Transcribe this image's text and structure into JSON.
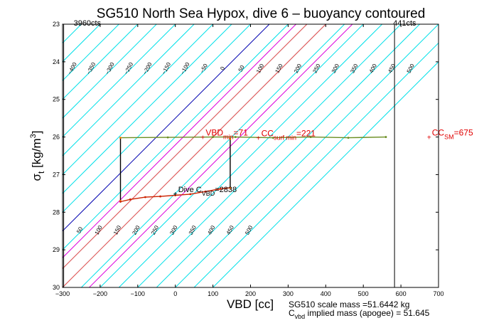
{
  "chart_data": {
    "type": "line",
    "title": "SG510 North Sea Hypox, dive 6 – buoyancy contoured",
    "xlabel": "VBD [cc]",
    "ylabel_main": "σ",
    "ylabel_sub": "t",
    "ylabel_unit": " [kg/m",
    "ylabel_exp": "3",
    "ylabel_close": "]",
    "xlim": [
      -300,
      700
    ],
    "ylim": [
      23,
      30
    ],
    "y_reversed": true,
    "xticks": [
      -300,
      -200,
      -100,
      0,
      100,
      200,
      300,
      400,
      500,
      600,
      700
    ],
    "xtick_labels": [
      "−300",
      "−200",
      "−100",
      "0",
      "100",
      "200",
      "300",
      "400",
      "500",
      "600",
      "700"
    ],
    "yticks": [
      23,
      24,
      25,
      26,
      27,
      28,
      29,
      30
    ],
    "ytick_labels": [
      "23",
      "24",
      "25",
      "26",
      "27",
      "28",
      "29",
      "30"
    ],
    "limit_lines": [
      {
        "x": -297,
        "label": "3960cts"
      },
      {
        "x": 583,
        "label": "441cts"
      }
    ],
    "contours": {
      "cyan_levels": [
        -500,
        -450,
        -400,
        -350,
        -300,
        -250,
        -200,
        -150,
        -100,
        -50,
        50,
        100,
        150,
        200,
        250,
        300,
        350,
        400,
        450,
        500,
        550
      ],
      "blue_level": 0,
      "magenta_levels": [
        71,
        221
      ],
      "red_levels": [
        100,
        150
      ],
      "level_spacing_per_sigma": 50,
      "ref_x_at_sigma_25": 50,
      "top_labels": [
        {
          "level": -450,
          "text": "−450"
        },
        {
          "level": -400,
          "text": "−400"
        },
        {
          "level": -350,
          "text": "−350"
        },
        {
          "level": -300,
          "text": "−300"
        },
        {
          "level": -250,
          "text": "−250"
        },
        {
          "level": -200,
          "text": "−200"
        },
        {
          "level": -150,
          "text": "−150"
        },
        {
          "level": -100,
          "text": "−100"
        },
        {
          "level": -50,
          "text": "−50"
        },
        {
          "level": 0,
          "text": "0"
        },
        {
          "level": 50,
          "text": "50"
        },
        {
          "level": 100,
          "text": "100"
        },
        {
          "level": 150,
          "text": "150"
        },
        {
          "level": 200,
          "text": "200"
        },
        {
          "level": 250,
          "text": "250"
        },
        {
          "level": 300,
          "text": "300"
        },
        {
          "level": 350,
          "text": "350"
        },
        {
          "level": 400,
          "text": "400"
        },
        {
          "level": 450,
          "text": "450"
        },
        {
          "level": 500,
          "text": "500"
        }
      ],
      "bottom_labels": [
        {
          "level": -200,
          "text": "−200"
        },
        {
          "level": -150,
          "text": "−150"
        },
        {
          "level": -100,
          "text": "−100"
        },
        {
          "level": -50,
          "text": "−50"
        },
        {
          "level": 0,
          "text": "0"
        },
        {
          "level": 50,
          "text": "50"
        },
        {
          "level": 100,
          "text": "100"
        },
        {
          "level": 150,
          "text": "150"
        },
        {
          "level": 200,
          "text": "200"
        },
        {
          "level": 250,
          "text": "250"
        },
        {
          "level": 300,
          "text": "300"
        },
        {
          "level": 350,
          "text": "350"
        },
        {
          "level": 400,
          "text": "400"
        },
        {
          "level": 450,
          "text": "450"
        },
        {
          "level": 500,
          "text": "500"
        }
      ]
    },
    "series": [
      {
        "color": "#6b8e23",
        "points": [
          [
            -146,
            26.02
          ],
          [
            -20,
            26.01
          ],
          [
            100,
            26.0
          ],
          [
            160,
            26.0
          ],
          [
            260,
            26.02
          ],
          [
            360,
            26.0
          ],
          [
            460,
            26.02
          ],
          [
            560,
            26.0
          ]
        ]
      },
      {
        "color": "#000000",
        "points": [
          [
            -146,
            26.02
          ],
          [
            -146,
            27.7
          ]
        ]
      },
      {
        "color": "#cc2200",
        "points": [
          [
            -146,
            27.72
          ],
          [
            -120,
            27.66
          ],
          [
            -80,
            27.6
          ],
          [
            -40,
            27.58
          ],
          [
            0,
            27.55
          ],
          [
            40,
            27.52
          ],
          [
            80,
            27.45
          ],
          [
            120,
            27.38
          ],
          [
            146,
            27.35
          ]
        ]
      },
      {
        "color": "#000000",
        "points": [
          [
            146,
            27.35
          ],
          [
            146,
            26.05
          ]
        ]
      }
    ],
    "markers": [
      {
        "x": 73,
        "y": 26.0,
        "text": "VBD",
        "sub": "min",
        "after": "=71"
      },
      {
        "x": 221,
        "y": 26.02,
        "text": "CC",
        "sub": "surf min",
        "after": "=221"
      },
      {
        "x": 675,
        "y": 26.0,
        "text": "CC",
        "sub": "SM",
        "after": "=675"
      },
      {
        "x": 0,
        "y": 27.5,
        "text": "Dive C",
        "sub": "VBD",
        "after": "=2838"
      }
    ]
  },
  "footer": {
    "line1": "SG510 scale mass =51.6442 kg",
    "line2_main": "C",
    "line2_sub": "vbd",
    "line2_rest": " implied mass (apogee) = 51.645"
  }
}
